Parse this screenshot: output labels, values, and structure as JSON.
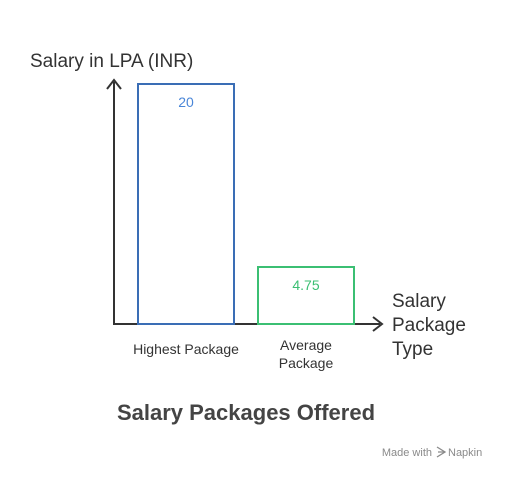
{
  "chart_data": {
    "type": "bar",
    "title": "Salary Packages Offered",
    "ylabel": "Salary in LPA (INR)",
    "xlabel_lines": [
      "Salary",
      "Package",
      "Type"
    ],
    "categories": [
      {
        "lines": [
          "Highest Package"
        ]
      },
      {
        "lines": [
          "Average",
          "Package"
        ]
      }
    ],
    "values": [
      20,
      4.75
    ],
    "value_labels": [
      "20",
      "4.75"
    ],
    "ylim": [
      0,
      20
    ],
    "bar_colors": [
      "#3a6db5",
      "#3bbf73"
    ],
    "value_label_colors": [
      "#4a86d8",
      "#3bbf73"
    ]
  },
  "footer": {
    "credit_prefix": "Made with",
    "credit_brand": "Napkin"
  },
  "colors": {
    "axis": "#333333",
    "text": "#333333"
  }
}
